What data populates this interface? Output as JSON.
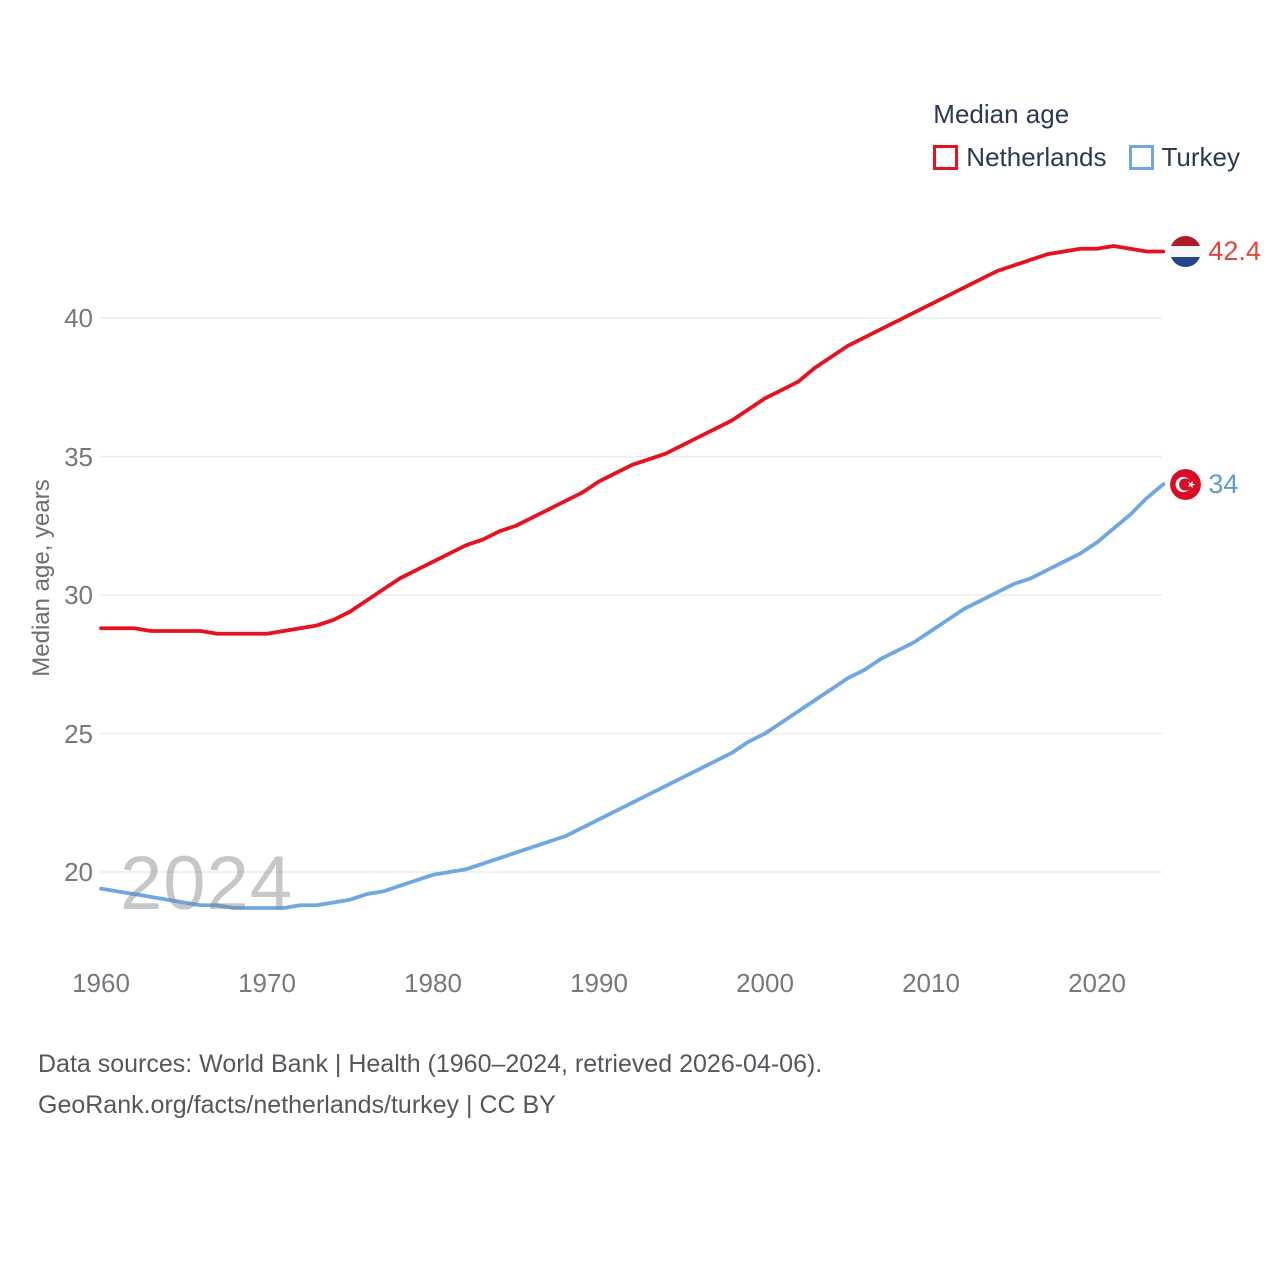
{
  "legend": {
    "title": "Median age",
    "items": [
      {
        "label": "Netherlands",
        "color": "#e8121f"
      },
      {
        "label": "Turkey",
        "color": "#6fa7e3"
      }
    ]
  },
  "axes": {
    "y_label": "Median age, years",
    "y_ticks": [
      "20",
      "25",
      "30",
      "35",
      "40"
    ],
    "x_ticks": [
      "1960",
      "1970",
      "1980",
      "1990",
      "2000",
      "2010",
      "2020"
    ]
  },
  "end_labels": {
    "netherlands": {
      "value": "42.4",
      "flag": "netherlands-flag"
    },
    "turkey": {
      "value": "34",
      "flag": "turkey-flag"
    }
  },
  "watermark": "2024",
  "footer": {
    "line1": "Data sources: World Bank | Health (1960–2024, retrieved 2026-04-06).",
    "line2": "GeoRank.org/facts/netherlands/turkey | CC BY"
  },
  "chart_data": {
    "type": "line",
    "title": "Median age",
    "xlabel": "",
    "ylabel": "Median age, years",
    "grid": "horizontal",
    "legend_position": "top-right",
    "xlim": [
      1960,
      2024
    ],
    "ylim": [
      18,
      44
    ],
    "ytick_values": [
      20,
      25,
      30,
      35,
      40
    ],
    "xtick_values": [
      1960,
      1970,
      1980,
      1990,
      2000,
      2010,
      2020
    ],
    "x": [
      1960,
      1961,
      1962,
      1963,
      1964,
      1965,
      1966,
      1967,
      1968,
      1969,
      1970,
      1971,
      1972,
      1973,
      1974,
      1975,
      1976,
      1977,
      1978,
      1979,
      1980,
      1981,
      1982,
      1983,
      1984,
      1985,
      1986,
      1987,
      1988,
      1989,
      1990,
      1991,
      1992,
      1993,
      1994,
      1995,
      1996,
      1997,
      1998,
      1999,
      2000,
      2001,
      2002,
      2003,
      2004,
      2005,
      2006,
      2007,
      2008,
      2009,
      2010,
      2011,
      2012,
      2013,
      2014,
      2015,
      2016,
      2017,
      2018,
      2019,
      2020,
      2021,
      2022,
      2023,
      2024
    ],
    "series": [
      {
        "name": "Netherlands",
        "color": "#e8121f",
        "end_value": 42.4,
        "values": [
          28.8,
          28.8,
          28.8,
          28.7,
          28.7,
          28.7,
          28.7,
          28.6,
          28.6,
          28.6,
          28.6,
          28.7,
          28.8,
          28.9,
          29.1,
          29.4,
          29.8,
          30.2,
          30.6,
          30.9,
          31.2,
          31.5,
          31.8,
          32.0,
          32.3,
          32.5,
          32.8,
          33.1,
          33.4,
          33.7,
          34.1,
          34.4,
          34.7,
          34.9,
          35.1,
          35.4,
          35.7,
          36.0,
          36.3,
          36.7,
          37.1,
          37.4,
          37.7,
          38.2,
          38.6,
          39.0,
          39.3,
          39.6,
          39.9,
          40.2,
          40.5,
          40.8,
          41.1,
          41.4,
          41.7,
          41.9,
          42.1,
          42.3,
          42.4,
          42.5,
          42.5,
          42.6,
          42.5,
          42.4,
          42.4
        ]
      },
      {
        "name": "Turkey",
        "color": "#6fa7e3",
        "end_value": 34,
        "values": [
          19.4,
          19.3,
          19.2,
          19.1,
          19.0,
          18.9,
          18.8,
          18.8,
          18.7,
          18.7,
          18.7,
          18.7,
          18.8,
          18.8,
          18.9,
          19.0,
          19.2,
          19.3,
          19.5,
          19.7,
          19.9,
          20.0,
          20.1,
          20.3,
          20.5,
          20.7,
          20.9,
          21.1,
          21.3,
          21.6,
          21.9,
          22.2,
          22.5,
          22.8,
          23.1,
          23.4,
          23.7,
          24.0,
          24.3,
          24.7,
          25.0,
          25.4,
          25.8,
          26.2,
          26.6,
          27.0,
          27.3,
          27.7,
          28.0,
          28.3,
          28.7,
          29.1,
          29.5,
          29.8,
          30.1,
          30.4,
          30.6,
          30.9,
          31.2,
          31.5,
          31.9,
          32.4,
          32.9,
          33.5,
          34.0
        ]
      }
    ]
  }
}
